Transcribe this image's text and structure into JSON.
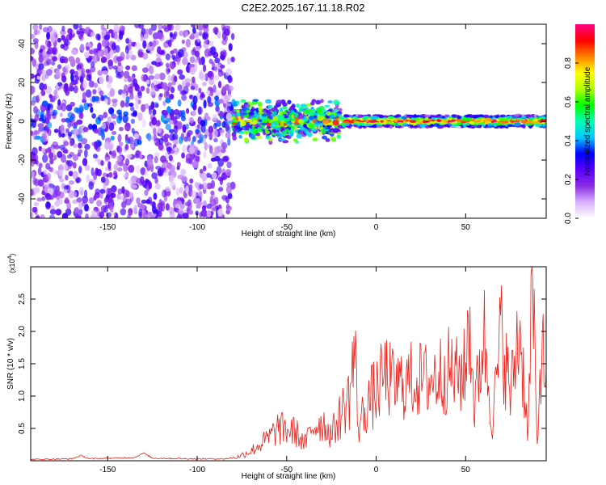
{
  "title": "C2E2.2025.167.11.18.R02",
  "chart_data": [
    {
      "type": "heatmap",
      "xlabel": "Height of straight line (km)",
      "ylabel": "Frequency (Hz)",
      "xlim": [
        -193,
        95
      ],
      "ylim": [
        -50,
        50
      ],
      "xticks": [
        -150,
        -100,
        -50,
        0,
        50
      ],
      "yticks": [
        -40,
        -20,
        0,
        20,
        40
      ],
      "colorbar": {
        "label": "Normalized spectral amplitude",
        "range": [
          0,
          1
        ],
        "ticks": [
          0.0,
          0.2,
          0.4,
          0.6,
          0.8
        ],
        "colormap": [
          "#ffffff",
          "#d8b0ff",
          "#8a2be2",
          "#5a00ff",
          "#0000ff",
          "#00c8ff",
          "#00ffb4",
          "#00ff00",
          "#b4ff00",
          "#ffff00",
          "#ff8000",
          "#ff0000",
          "#ff0080"
        ]
      },
      "regions": [
        {
          "x": [
            -193,
            -80
          ],
          "freq_spread": 50,
          "amplitude": "0.05–0.3",
          "description_level": "noise"
        },
        {
          "x": [
            -80,
            -20
          ],
          "freq_center": 0,
          "freq_spread": 6,
          "amplitude": "0.3–0.9"
        },
        {
          "x": [
            -20,
            95
          ],
          "freq_center": 0,
          "freq_spread": 3,
          "amplitude": "0.5–1.0"
        }
      ]
    },
    {
      "type": "line",
      "xlabel": "Height of straight line (km)",
      "ylabel": "SNR (10 * v/v)",
      "yscale_label": "(x10",
      "yscale_exp": "4",
      "yscale_close": ")",
      "xlim": [
        -193,
        95
      ],
      "ylim": [
        0,
        3.0
      ],
      "xticks": [
        -150,
        -100,
        -50,
        0,
        50
      ],
      "yticks": [
        0.5,
        1.0,
        1.5,
        2.0,
        2.5
      ],
      "series": [
        {
          "color": "#e8201a",
          "points": [
            [
              -193,
              0.02
            ],
            [
              -170,
              0.03
            ],
            [
              -165,
              0.08
            ],
            [
              -160,
              0.03
            ],
            [
              -135,
              0.05
            ],
            [
              -130,
              0.12
            ],
            [
              -125,
              0.04
            ],
            [
              -100,
              0.03
            ],
            [
              -85,
              0.03
            ],
            [
              -78,
              0.05
            ],
            [
              -70,
              0.15
            ],
            [
              -60,
              0.35
            ],
            [
              -55,
              0.5
            ],
            [
              -45,
              0.45
            ],
            [
              -40,
              0.25
            ],
            [
              -35,
              0.55
            ],
            [
              -30,
              0.6
            ],
            [
              -25,
              0.4
            ],
            [
              -20,
              0.7
            ],
            [
              -15,
              1.0
            ],
            [
              -12,
              1.7
            ],
            [
              -10,
              0.5
            ],
            [
              -5,
              0.9
            ],
            [
              0,
              1.05
            ],
            [
              5,
              1.35
            ],
            [
              10,
              1.15
            ],
            [
              20,
              1.25
            ],
            [
              30,
              1.25
            ],
            [
              40,
              1.4
            ],
            [
              45,
              1.3
            ],
            [
              50,
              1.4
            ],
            [
              52,
              2.3
            ],
            [
              55,
              0.8
            ],
            [
              60,
              2.0
            ],
            [
              65,
              0.6
            ],
            [
              70,
              2.0
            ],
            [
              75,
              1.0
            ],
            [
              80,
              2.1
            ],
            [
              85,
              0.4
            ],
            [
              87,
              2.95
            ],
            [
              90,
              0.2
            ],
            [
              92,
              1.7
            ],
            [
              95,
              1.4
            ]
          ]
        }
      ]
    }
  ]
}
